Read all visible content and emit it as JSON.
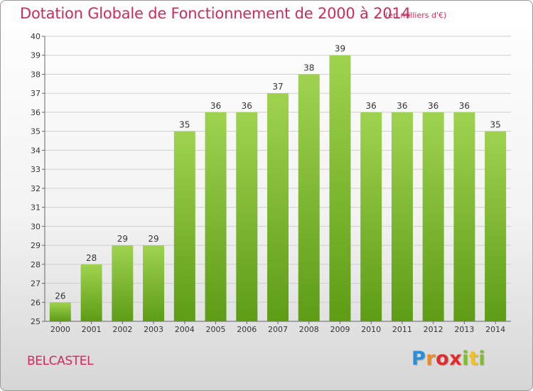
{
  "title": "Dotation Globale de Fonctionnement de 2000 à 2014",
  "unit": "(en milliers d'€)",
  "commune": "BELCASTEL",
  "logo": {
    "letters": [
      {
        "char": "P",
        "color": "#2a8fd6"
      },
      {
        "char": "r",
        "color": "#f08a1c"
      },
      {
        "char": "o",
        "color": "#e32b2b"
      },
      {
        "char": "x",
        "color": "#e32b2b"
      },
      {
        "char": "i",
        "color": "#7bbf2a"
      },
      {
        "char": "t",
        "color": "#f3c21b"
      },
      {
        "char": "i",
        "color": "#7bbf2a"
      }
    ]
  },
  "colors": {
    "bar_top": "#9fd34f",
    "bar_bottom": "#5e9c16",
    "grid": "#cfcfcf",
    "title": "#d02a5b"
  },
  "chart_data": {
    "type": "bar",
    "title": "Dotation Globale de Fonctionnement de 2000 à 2014",
    "subtitle": "(en milliers d'€)",
    "xlabel": "",
    "ylabel": "",
    "categories": [
      "2000",
      "2001",
      "2002",
      "2003",
      "2004",
      "2005",
      "2006",
      "2007",
      "2008",
      "2009",
      "2010",
      "2011",
      "2012",
      "2013",
      "2014"
    ],
    "values": [
      26,
      28,
      29,
      29,
      35,
      36,
      36,
      37,
      38,
      39,
      36,
      36,
      36,
      36,
      35
    ],
    "ylim": [
      25,
      40
    ],
    "yticks": [
      25,
      26,
      27,
      28,
      29,
      30,
      31,
      32,
      33,
      34,
      35,
      36,
      37,
      38,
      39,
      40
    ],
    "grid": true,
    "legend": "none"
  }
}
